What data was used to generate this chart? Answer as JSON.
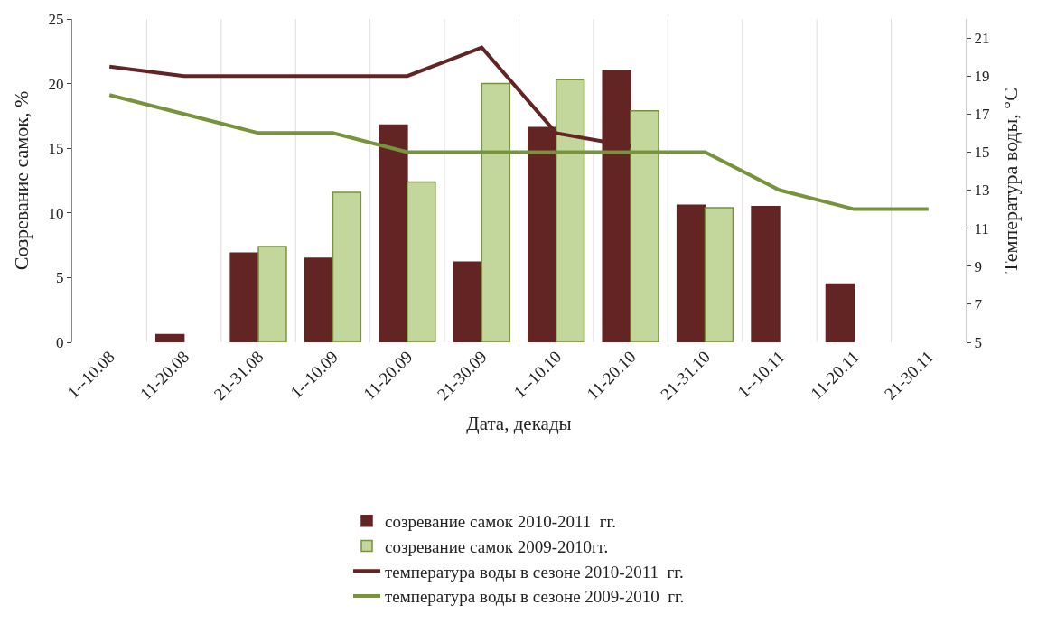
{
  "chart_data": {
    "type": "bar",
    "xlabel": "Дата, декады",
    "ylabel": "Созревание самок, %",
    "y2label": "Температура воды, °C",
    "categories": [
      "1--10.08",
      "11-20.08",
      "21-31.08",
      "1--10.09",
      "11-20.09",
      "21-30.09",
      "1--10.10",
      "11-20.10",
      "21-31.10",
      "1--10.11",
      "11-20.11",
      "21-30.11"
    ],
    "series": [
      {
        "name": "созревание самок 2010-2011  гг.",
        "color": "#632523",
        "values": [
          null,
          0.6,
          6.9,
          6.5,
          16.8,
          6.2,
          16.6,
          21.0,
          10.6,
          10.5,
          4.5,
          null
        ]
      },
      {
        "name": "созревание самок 2009-2010гг.",
        "color": "#c3d69b",
        "values": [
          null,
          null,
          7.4,
          11.6,
          12.4,
          20.0,
          20.3,
          17.9,
          10.4,
          null,
          null,
          null
        ]
      },
      {
        "name": "температура воды в сезоне 2010-2011  гг.",
        "type": "line",
        "axis": "y2",
        "color": "#632523",
        "values": [
          19.5,
          19,
          19,
          19,
          19,
          20.5,
          16,
          15.3,
          null,
          null,
          null,
          null
        ]
      },
      {
        "name": "температура воды в сезоне 2009-2010  гг.",
        "type": "line",
        "axis": "y2",
        "color": "#77933c",
        "values": [
          18,
          17,
          16,
          16,
          15,
          15,
          15,
          15,
          15,
          13,
          12,
          12
        ]
      }
    ],
    "ylim": [
      0,
      25
    ],
    "yticks": [
      0,
      5,
      10,
      15,
      20,
      25
    ],
    "y2lim": [
      5,
      22
    ],
    "y2ticks": [
      5,
      7,
      9,
      11,
      13,
      15,
      17,
      19,
      21
    ],
    "grid": "x",
    "legend": "bottom",
    "marker": "none",
    "line_style": "solid"
  }
}
